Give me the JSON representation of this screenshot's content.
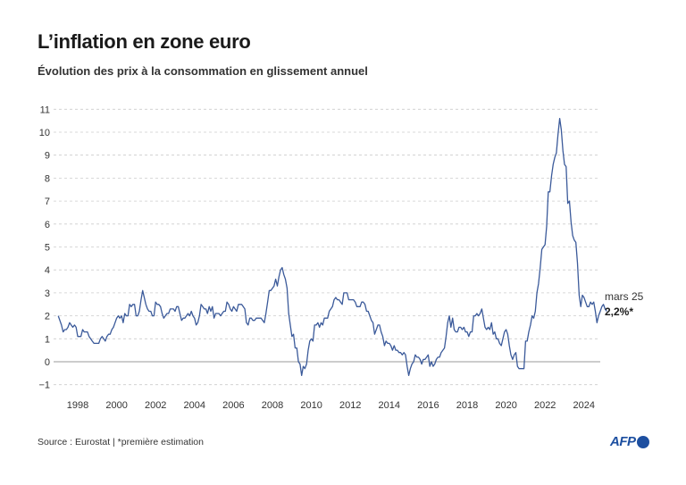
{
  "header": {
    "title": "L’inflation en zone euro",
    "subtitle": "Évolution des prix à la consommation en glissement annuel"
  },
  "footer": {
    "source": "Source : Eurostat | *première estimation",
    "logo_text": "AFP"
  },
  "colors": {
    "line": "#3b5a9a",
    "grid": "#cccccc",
    "zero_line": "#999999",
    "logo": "#1d4fa0"
  },
  "chart_data": {
    "type": "line",
    "title": "L’inflation en zone euro",
    "subtitle": "Évolution des prix à la consommation en glissement annuel",
    "xlabel": "",
    "ylabel": "",
    "x_start": "1997-01",
    "x_frequency": "monthly",
    "xlim": [
      1997,
      2025.25
    ],
    "ylim": [
      -1,
      11
    ],
    "y_ticks": [
      "11",
      "10",
      "9",
      "8",
      "7",
      "6",
      "5",
      "4",
      "3",
      "2",
      "1",
      "0",
      "−1"
    ],
    "x_ticks": [
      "1998",
      "2000",
      "2002",
      "2004",
      "2006",
      "2008",
      "2010",
      "2012",
      "2014",
      "2016",
      "2018",
      "2020",
      "2022",
      "2024"
    ],
    "grid": "horizontal dashed",
    "annotation": {
      "label": "mars 25",
      "value": "2,2%*"
    },
    "values": [
      2.0,
      1.8,
      1.6,
      1.3,
      1.4,
      1.4,
      1.5,
      1.7,
      1.6,
      1.5,
      1.6,
      1.5,
      1.1,
      1.1,
      1.1,
      1.4,
      1.3,
      1.3,
      1.3,
      1.1,
      1.0,
      0.9,
      0.8,
      0.8,
      0.8,
      0.8,
      1.0,
      1.1,
      1.0,
      0.9,
      1.1,
      1.2,
      1.2,
      1.4,
      1.5,
      1.7,
      1.9,
      2.0,
      1.9,
      2.0,
      1.7,
      2.1,
      2.0,
      2.0,
      2.5,
      2.4,
      2.5,
      2.5,
      2.0,
      2.0,
      2.2,
      2.7,
      3.1,
      2.8,
      2.5,
      2.3,
      2.2,
      2.2,
      2.0,
      2.0,
      2.6,
      2.5,
      2.5,
      2.4,
      2.1,
      1.9,
      2.0,
      2.1,
      2.1,
      2.3,
      2.3,
      2.3,
      2.2,
      2.4,
      2.4,
      2.1,
      1.8,
      1.9,
      1.9,
      2.0,
      2.1,
      2.0,
      2.2,
      2.0,
      1.9,
      1.6,
      1.7,
      2.0,
      2.5,
      2.4,
      2.3,
      2.3,
      2.1,
      2.4,
      2.2,
      2.4,
      1.9,
      2.1,
      2.1,
      2.1,
      2.0,
      2.1,
      2.2,
      2.2,
      2.6,
      2.5,
      2.3,
      2.2,
      2.4,
      2.3,
      2.2,
      2.5,
      2.5,
      2.5,
      2.4,
      2.3,
      1.7,
      1.6,
      1.9,
      1.9,
      1.8,
      1.8,
      1.9,
      1.9,
      1.9,
      1.9,
      1.8,
      1.7,
      2.1,
      2.6,
      3.1,
      3.1,
      3.2,
      3.3,
      3.6,
      3.3,
      3.7,
      4.0,
      4.1,
      3.8,
      3.6,
      3.2,
      2.1,
      1.6,
      1.1,
      1.2,
      0.6,
      0.6,
      0.0,
      -0.1,
      -0.6,
      -0.2,
      -0.3,
      -0.1,
      0.5,
      0.9,
      1.0,
      0.9,
      1.6,
      1.6,
      1.7,
      1.5,
      1.7,
      1.6,
      1.9,
      1.9,
      1.9,
      2.2,
      2.3,
      2.4,
      2.7,
      2.8,
      2.7,
      2.7,
      2.6,
      2.5,
      3.0,
      3.0,
      3.0,
      2.7,
      2.7,
      2.7,
      2.7,
      2.6,
      2.4,
      2.4,
      2.4,
      2.6,
      2.6,
      2.5,
      2.2,
      2.2,
      2.0,
      1.8,
      1.7,
      1.2,
      1.4,
      1.6,
      1.6,
      1.3,
      1.1,
      0.7,
      0.9,
      0.8,
      0.8,
      0.7,
      0.5,
      0.7,
      0.5,
      0.5,
      0.4,
      0.4,
      0.3,
      0.4,
      0.3,
      -0.2,
      -0.6,
      -0.3,
      -0.1,
      0.0,
      0.3,
      0.2,
      0.2,
      0.1,
      -0.1,
      0.1,
      0.1,
      0.2,
      0.3,
      -0.2,
      0.0,
      -0.2,
      -0.1,
      0.1,
      0.2,
      0.2,
      0.4,
      0.5,
      0.6,
      1.1,
      1.7,
      2.0,
      1.5,
      1.9,
      1.4,
      1.3,
      1.3,
      1.5,
      1.5,
      1.4,
      1.5,
      1.3,
      1.3,
      1.1,
      1.3,
      1.3,
      2.0,
      2.0,
      2.1,
      2.0,
      2.1,
      2.3,
      1.9,
      1.5,
      1.4,
      1.5,
      1.4,
      1.7,
      1.2,
      1.3,
      1.0,
      1.0,
      0.8,
      0.7,
      1.0,
      1.3,
      1.4,
      1.2,
      0.7,
      0.3,
      0.1,
      0.3,
      0.4,
      -0.2,
      -0.3,
      -0.3,
      -0.3,
      -0.3,
      0.9,
      0.9,
      1.3,
      1.6,
      2.0,
      1.9,
      2.2,
      3.0,
      3.4,
      4.1,
      4.9,
      5.0,
      5.1,
      5.9,
      7.4,
      7.4,
      8.1,
      8.6,
      8.9,
      9.1,
      9.9,
      10.6,
      10.1,
      9.2,
      8.6,
      8.5,
      6.9,
      7.0,
      6.1,
      5.5,
      5.3,
      5.2,
      4.3,
      2.9,
      2.4,
      2.9,
      2.8,
      2.6,
      2.4,
      2.4,
      2.6,
      2.5,
      2.6,
      2.2,
      1.7,
      2.0,
      2.2,
      2.4,
      2.5,
      2.3,
      2.2
    ]
  }
}
